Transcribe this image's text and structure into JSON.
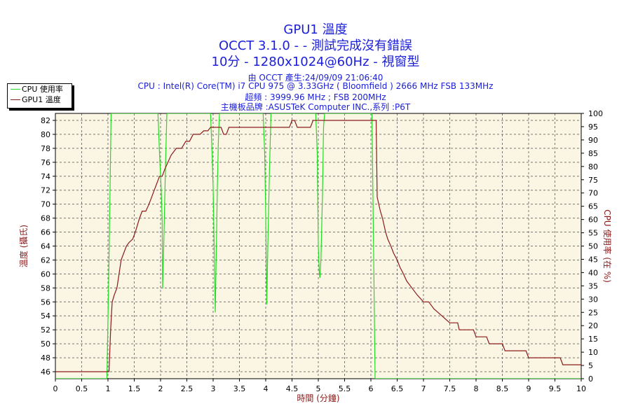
{
  "header": {
    "title": "GPU1 溫度",
    "subtitle": "OCCT 3.1.0 -  - 測試完成沒有錯誤",
    "settings": "10分 - 1280x1024@60Hz - 視窗型",
    "info": [
      "由 OCCT 產生:24/09/09 21:06:40",
      "CPU : Intel(R) Core(TM) i7 CPU 975 @ 3.33GHz ( Bloomfield ) 2666 MHz FSB 133MHz",
      "超頻 : 3999.96 MHz ; FSB 200MHz",
      "主機板品牌 :ASUSTeK Computer INC.,系列 :P6T"
    ]
  },
  "legend": {
    "items": [
      {
        "label": "CPU 使用率",
        "color": "#22dd22"
      },
      {
        "label": "GPU1 溫度",
        "color": "#8b1a1a"
      }
    ]
  },
  "chart_data": {
    "type": "line",
    "xlabel": "時間 (分鐘)",
    "ylabel_left": "溫度 (攝氏)",
    "ylabel_right": "CPU 使用率 (在 %)",
    "xlim": [
      0,
      10
    ],
    "ylim_left": [
      45,
      83
    ],
    "ylim_right": [
      0,
      100
    ],
    "x_ticks": [
      "0",
      "0.5",
      "1",
      "1.5",
      "2",
      "2.5",
      "3",
      "3.5",
      "4",
      "4.5",
      "5",
      "5.5",
      "6",
      "6.5",
      "7",
      "7.5",
      "8",
      "8.5",
      "9",
      "9.5",
      "10"
    ],
    "y_left_ticks": [
      "46",
      "48",
      "50",
      "52",
      "54",
      "56",
      "58",
      "60",
      "62",
      "64",
      "66",
      "68",
      "70",
      "72",
      "74",
      "76",
      "78",
      "80",
      "82"
    ],
    "y_right_ticks": [
      "0",
      "5",
      "10",
      "15",
      "20",
      "25",
      "30",
      "35",
      "40",
      "45",
      "50",
      "55",
      "60",
      "65",
      "70",
      "75",
      "80",
      "85",
      "90",
      "95",
      "100"
    ],
    "grid": true,
    "background": "#fbf5e4",
    "series": [
      {
        "name": "GPU1 溫度",
        "axis": "left",
        "color": "#8b1a1a",
        "points": [
          [
            0,
            46
          ],
          [
            0.98,
            46
          ],
          [
            1.02,
            46
          ],
          [
            1.05,
            52
          ],
          [
            1.08,
            56
          ],
          [
            1.12,
            57
          ],
          [
            1.17,
            58
          ],
          [
            1.21,
            60
          ],
          [
            1.25,
            62
          ],
          [
            1.3,
            63
          ],
          [
            1.35,
            64
          ],
          [
            1.4,
            64.5
          ],
          [
            1.47,
            65
          ],
          [
            1.52,
            66
          ],
          [
            1.56,
            67
          ],
          [
            1.6,
            68
          ],
          [
            1.65,
            69
          ],
          [
            1.72,
            69
          ],
          [
            1.78,
            70
          ],
          [
            1.83,
            71
          ],
          [
            1.88,
            72
          ],
          [
            1.93,
            73
          ],
          [
            1.98,
            74
          ],
          [
            2.03,
            74
          ],
          [
            2.08,
            75
          ],
          [
            2.14,
            76
          ],
          [
            2.2,
            77
          ],
          [
            2.3,
            78
          ],
          [
            2.4,
            78
          ],
          [
            2.48,
            79
          ],
          [
            2.55,
            79
          ],
          [
            2.62,
            80
          ],
          [
            2.75,
            80
          ],
          [
            2.82,
            80.5
          ],
          [
            2.9,
            80.5
          ],
          [
            2.95,
            81
          ],
          [
            3.1,
            81
          ],
          [
            3.15,
            81
          ],
          [
            3.2,
            80
          ],
          [
            3.25,
            80
          ],
          [
            3.3,
            81
          ],
          [
            4.0,
            81
          ],
          [
            4.03,
            81
          ],
          [
            4.45,
            81
          ],
          [
            4.5,
            82
          ],
          [
            4.55,
            82
          ],
          [
            4.6,
            81
          ],
          [
            4.85,
            81
          ],
          [
            4.9,
            82
          ],
          [
            6.1,
            82
          ],
          [
            6.12,
            71
          ],
          [
            6.18,
            69
          ],
          [
            6.22,
            68
          ],
          [
            6.28,
            66
          ],
          [
            6.32,
            65
          ],
          [
            6.38,
            64
          ],
          [
            6.43,
            63
          ],
          [
            6.5,
            62
          ],
          [
            6.55,
            61
          ],
          [
            6.62,
            60
          ],
          [
            6.68,
            59
          ],
          [
            6.78,
            58
          ],
          [
            6.88,
            57
          ],
          [
            7.0,
            56
          ],
          [
            7.1,
            56
          ],
          [
            7.2,
            55
          ],
          [
            7.35,
            54
          ],
          [
            7.5,
            53
          ],
          [
            7.65,
            53
          ],
          [
            7.68,
            52
          ],
          [
            7.95,
            52
          ],
          [
            8.0,
            51
          ],
          [
            8.2,
            51
          ],
          [
            8.25,
            50
          ],
          [
            8.5,
            50
          ],
          [
            8.55,
            49
          ],
          [
            8.95,
            49
          ],
          [
            9.0,
            48
          ],
          [
            9.3,
            48
          ],
          [
            9.35,
            48
          ],
          [
            9.6,
            48
          ],
          [
            9.65,
            47
          ],
          [
            10,
            47
          ]
        ]
      },
      {
        "name": "CPU 使用率",
        "axis": "right",
        "color": "#22dd22",
        "points": [
          [
            0,
            0
          ],
          [
            0.98,
            0
          ],
          [
            1.02,
            45
          ],
          [
            1.06,
            100
          ],
          [
            1.08,
            100
          ],
          [
            1.95,
            100
          ],
          [
            1.98,
            85
          ],
          [
            2.01,
            72
          ],
          [
            2.03,
            60
          ],
          [
            2.04,
            34
          ],
          [
            2.06,
            50
          ],
          [
            2.08,
            68
          ],
          [
            2.1,
            85
          ],
          [
            2.12,
            100
          ],
          [
            2.95,
            100
          ],
          [
            2.98,
            85
          ],
          [
            3.0,
            72
          ],
          [
            3.02,
            50
          ],
          [
            3.04,
            25
          ],
          [
            3.06,
            48
          ],
          [
            3.08,
            72
          ],
          [
            3.1,
            90
          ],
          [
            3.12,
            100
          ],
          [
            3.95,
            100
          ],
          [
            3.98,
            85
          ],
          [
            4.0,
            62
          ],
          [
            4.02,
            28
          ],
          [
            4.04,
            50
          ],
          [
            4.07,
            78
          ],
          [
            4.1,
            100
          ],
          [
            4.95,
            100
          ],
          [
            4.98,
            85
          ],
          [
            5.0,
            50
          ],
          [
            5.02,
            40
          ],
          [
            5.03,
            38
          ],
          [
            5.05,
            45
          ],
          [
            5.08,
            70
          ],
          [
            5.1,
            95
          ],
          [
            5.12,
            100
          ],
          [
            6.02,
            100
          ],
          [
            6.05,
            50
          ],
          [
            6.08,
            0
          ],
          [
            10,
            0
          ]
        ]
      }
    ]
  }
}
